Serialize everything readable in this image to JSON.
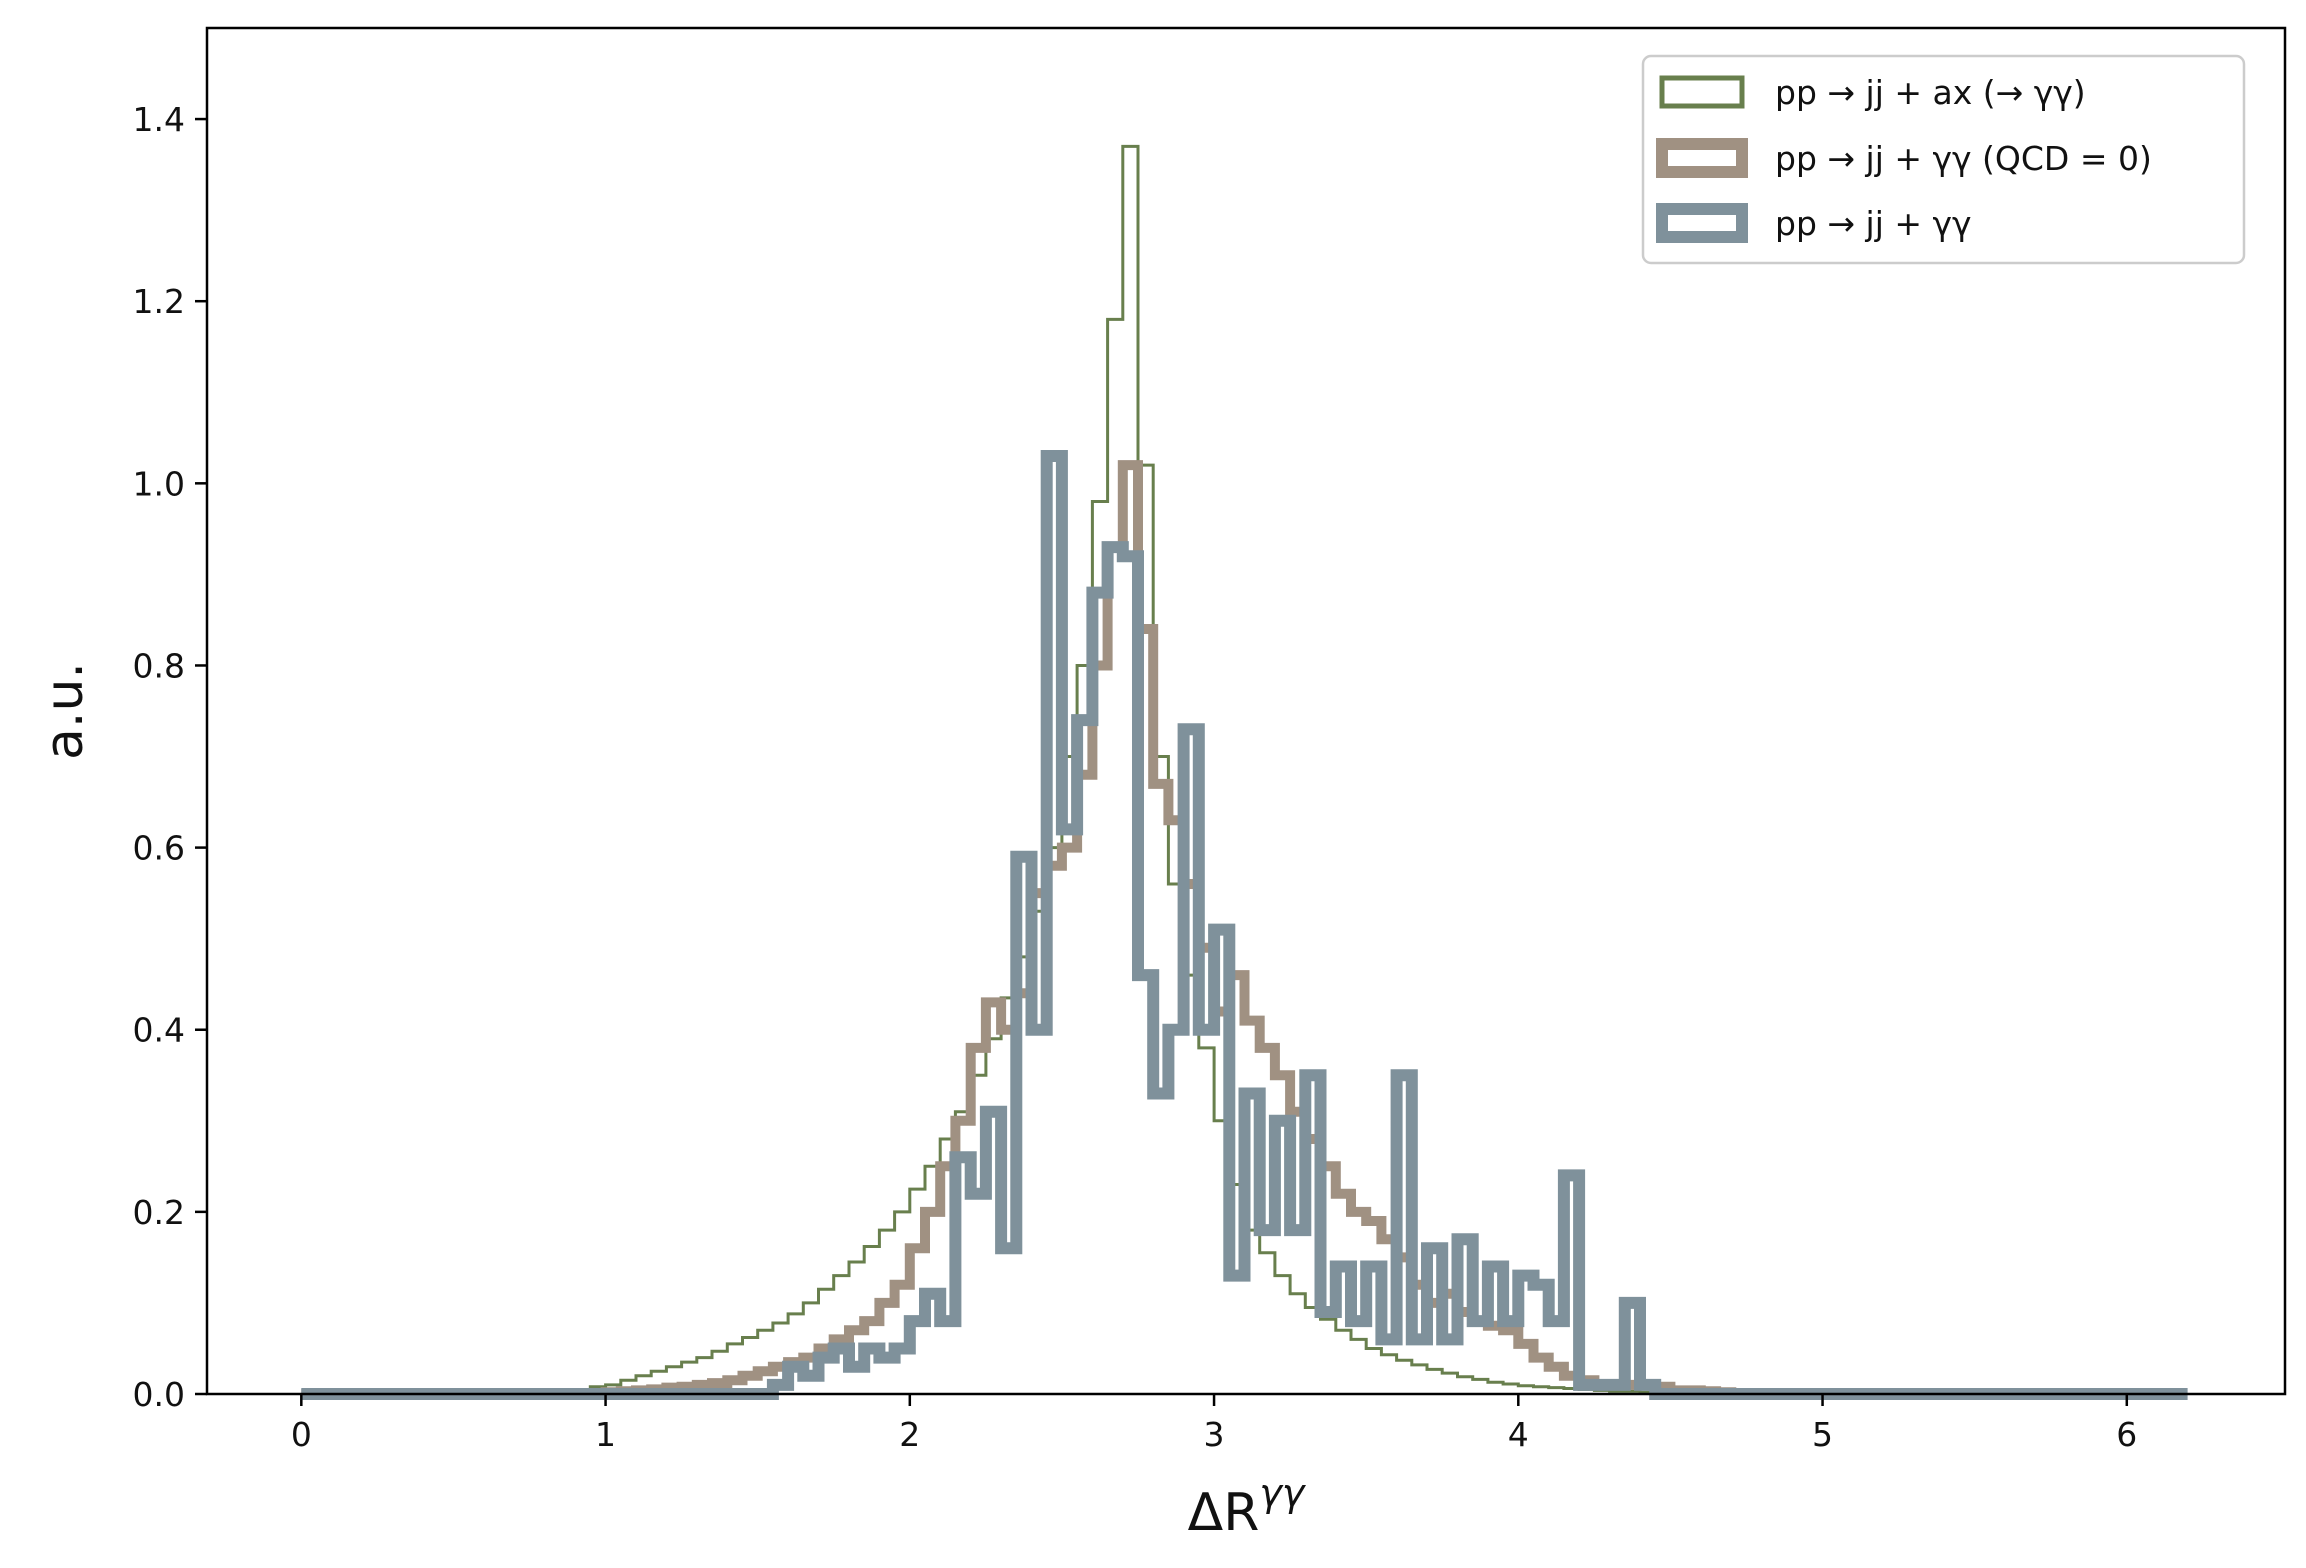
{
  "chart_data": {
    "type": "histogram-step",
    "title": "",
    "xlabel": "ΔR",
    "xlabel_superscript": "γγ",
    "ylabel": "a.u.",
    "xlim": [
      -0.31,
      6.52
    ],
    "ylim": [
      0,
      1.5
    ],
    "xticks": [
      "0",
      "1",
      "2",
      "3",
      "4",
      "5",
      "6"
    ],
    "yticks": [
      "0.0",
      "0.2",
      "0.4",
      "0.6",
      "0.8",
      "1.0",
      "1.2",
      "1.4"
    ],
    "grid": false,
    "legend_position": "top-right",
    "bin_start": 0,
    "bin_width": 0.05,
    "series": [
      {
        "name": "pp → jj + ax (→ γγ)",
        "color": "#687f4d",
        "line_width": 3,
        "x_end": 5.35,
        "values": [
          0,
          0,
          0,
          0,
          0,
          0,
          0,
          0,
          0,
          0,
          0,
          0,
          0,
          0,
          0,
          0,
          0,
          0,
          0.003,
          0.008,
          0.01,
          0.015,
          0.02,
          0.025,
          0.03,
          0.035,
          0.04,
          0.047,
          0.055,
          0.062,
          0.07,
          0.078,
          0.088,
          0.1,
          0.115,
          0.13,
          0.145,
          0.162,
          0.18,
          0.2,
          0.225,
          0.25,
          0.28,
          0.31,
          0.35,
          0.39,
          0.435,
          0.48,
          0.53,
          0.6,
          0.7,
          0.8,
          0.98,
          1.18,
          1.37,
          1.02,
          0.7,
          0.56,
          0.46,
          0.38,
          0.3,
          0.23,
          0.18,
          0.155,
          0.13,
          0.11,
          0.095,
          0.082,
          0.07,
          0.06,
          0.05,
          0.043,
          0.037,
          0.032,
          0.027,
          0.023,
          0.019,
          0.016,
          0.013,
          0.011,
          0.009,
          0.008,
          0.007,
          0.006,
          0.005,
          0.004,
          0.003,
          0.003,
          0.002,
          0.002,
          0.001,
          0.001,
          0.001,
          0,
          0,
          0,
          0,
          0,
          0,
          0,
          0,
          0,
          0,
          0,
          0,
          0,
          0
        ]
      },
      {
        "name": "pp → jj + γγ (QCD = 0)",
        "color": "#a09182",
        "line_width": 10,
        "x_end": 5.6,
        "values": [
          0,
          0,
          0,
          0,
          0,
          0,
          0,
          0,
          0,
          0,
          0,
          0,
          0,
          0,
          0,
          0,
          0,
          0,
          0,
          0,
          0.002,
          0.003,
          0.004,
          0.005,
          0.007,
          0.008,
          0.01,
          0.012,
          0.015,
          0.02,
          0.025,
          0.03,
          0.035,
          0.04,
          0.05,
          0.06,
          0.07,
          0.08,
          0.1,
          0.12,
          0.16,
          0.2,
          0.25,
          0.3,
          0.38,
          0.43,
          0.4,
          0.44,
          0.55,
          0.58,
          0.6,
          0.68,
          0.8,
          0.93,
          1.02,
          0.84,
          0.67,
          0.63,
          0.56,
          0.49,
          0.42,
          0.46,
          0.41,
          0.38,
          0.35,
          0.31,
          0.28,
          0.25,
          0.22,
          0.2,
          0.19,
          0.17,
          0.15,
          0.12,
          0.1,
          0.11,
          0.09,
          0.08,
          0.075,
          0.07,
          0.055,
          0.04,
          0.03,
          0.02,
          0.015,
          0.01,
          0.01,
          0.01,
          0.01,
          0.008,
          0.004,
          0.004,
          0.003,
          0.002,
          0.001,
          0,
          0,
          0,
          0,
          0,
          0,
          0,
          0,
          0,
          0,
          0,
          0
        ]
      },
      {
        "name": "pp → jj + γγ",
        "color": "#7f919b",
        "line_width": 12,
        "x_end": 6.2,
        "values": [
          0,
          0,
          0,
          0,
          0,
          0,
          0,
          0,
          0,
          0,
          0,
          0,
          0,
          0,
          0,
          0,
          0,
          0,
          0,
          0,
          0,
          0,
          0,
          0,
          0,
          0,
          0,
          0,
          0,
          0,
          0,
          0.01,
          0.03,
          0.02,
          0.04,
          0.05,
          0.03,
          0.05,
          0.04,
          0.05,
          0.08,
          0.11,
          0.08,
          0.26,
          0.22,
          0.31,
          0.16,
          0.59,
          0.4,
          1.03,
          0.62,
          0.74,
          0.88,
          0.93,
          0.92,
          0.46,
          0.33,
          0.4,
          0.73,
          0.4,
          0.51,
          0.13,
          0.33,
          0.18,
          0.3,
          0.18,
          0.35,
          0.09,
          0.14,
          0.08,
          0.14,
          0.06,
          0.35,
          0.06,
          0.16,
          0.06,
          0.17,
          0.08,
          0.14,
          0.08,
          0.13,
          0.12,
          0.08,
          0.24,
          0.01,
          0.01,
          0.01,
          0.1,
          0.01,
          0,
          0,
          0,
          0,
          0,
          0,
          0,
          0,
          0,
          0,
          0,
          0,
          0,
          0,
          0
        ]
      }
    ]
  }
}
